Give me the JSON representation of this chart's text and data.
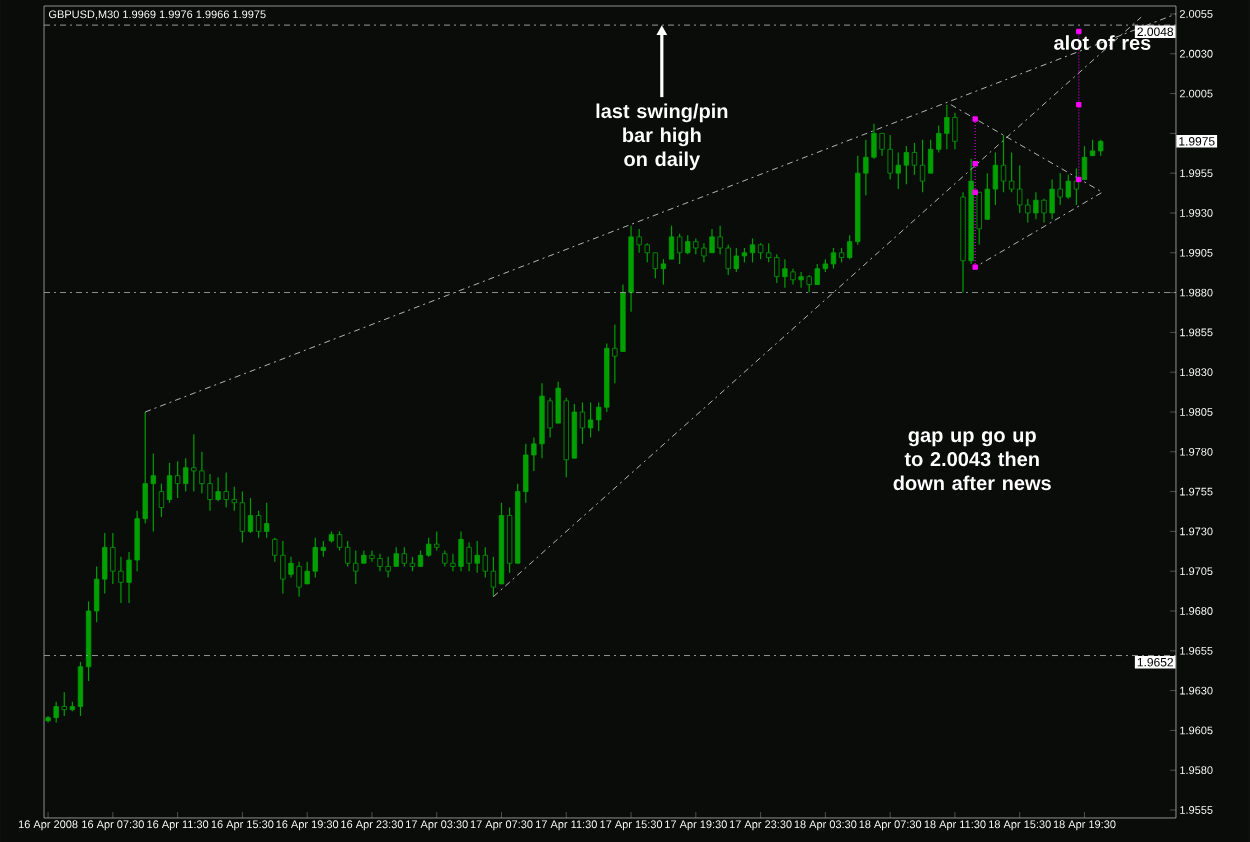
{
  "chart_data": {
    "type": "candlestick",
    "title": "GBPUSD,M30  1.9969 1.9976 1.9966 1.9975",
    "color": "#00a000",
    "x": [
      "2008-04-16T03:30",
      "2008-04-16T04:00",
      "2008-04-16T04:30",
      "2008-04-16T05:00",
      "2008-04-16T05:30",
      "2008-04-16T06:00",
      "2008-04-16T06:30",
      "2008-04-16T07:00",
      "2008-04-16T07:30",
      "2008-04-16T08:00",
      "2008-04-16T08:30",
      "2008-04-16T09:00",
      "2008-04-16T09:30",
      "2008-04-16T10:00",
      "2008-04-16T10:30",
      "2008-04-16T11:00",
      "2008-04-16T11:30",
      "2008-04-16T12:00",
      "2008-04-16T12:30",
      "2008-04-16T13:00",
      "2008-04-16T13:30",
      "2008-04-16T14:00",
      "2008-04-16T14:30",
      "2008-04-16T15:00",
      "2008-04-16T15:30",
      "2008-04-16T16:00",
      "2008-04-16T16:30",
      "2008-04-16T17:00",
      "2008-04-16T17:30",
      "2008-04-16T18:00",
      "2008-04-16T18:30",
      "2008-04-16T19:00",
      "2008-04-16T19:30",
      "2008-04-16T20:00",
      "2008-04-16T20:30",
      "2008-04-16T21:00",
      "2008-04-16T21:30",
      "2008-04-16T22:00",
      "2008-04-16T22:30",
      "2008-04-16T23:00",
      "2008-04-16T23:30",
      "2008-04-17T00:00",
      "2008-04-17T00:30",
      "2008-04-17T01:00",
      "2008-04-17T01:30",
      "2008-04-17T02:00",
      "2008-04-17T02:30",
      "2008-04-17T03:00",
      "2008-04-17T03:30",
      "2008-04-17T04:00",
      "2008-04-17T04:30",
      "2008-04-17T05:00",
      "2008-04-17T05:30",
      "2008-04-17T06:00",
      "2008-04-17T06:30",
      "2008-04-17T07:00",
      "2008-04-17T07:30",
      "2008-04-17T08:00",
      "2008-04-17T08:30",
      "2008-04-17T09:00",
      "2008-04-17T09:30",
      "2008-04-17T10:00",
      "2008-04-17T10:30",
      "2008-04-17T11:00",
      "2008-04-17T11:30",
      "2008-04-17T12:00",
      "2008-04-17T12:30",
      "2008-04-17T13:00",
      "2008-04-17T13:30",
      "2008-04-17T14:00",
      "2008-04-17T14:30",
      "2008-04-17T15:00",
      "2008-04-17T15:30",
      "2008-04-17T16:00",
      "2008-04-17T16:30",
      "2008-04-17T17:00",
      "2008-04-17T17:30",
      "2008-04-17T18:00",
      "2008-04-17T18:30",
      "2008-04-17T19:00",
      "2008-04-17T19:30",
      "2008-04-17T20:00",
      "2008-04-17T20:30",
      "2008-04-17T21:00",
      "2008-04-17T21:30",
      "2008-04-17T22:00",
      "2008-04-17T22:30",
      "2008-04-17T23:00",
      "2008-04-17T23:30",
      "2008-04-18T00:00",
      "2008-04-18T00:30",
      "2008-04-18T01:00",
      "2008-04-18T01:30",
      "2008-04-18T02:00",
      "2008-04-18T02:30",
      "2008-04-18T03:00",
      "2008-04-18T03:30",
      "2008-04-18T04:00",
      "2008-04-18T04:30",
      "2008-04-18T05:00",
      "2008-04-18T05:30",
      "2008-04-18T06:00",
      "2008-04-18T06:30",
      "2008-04-18T07:00",
      "2008-04-18T07:30",
      "2008-04-18T08:00",
      "2008-04-18T08:30",
      "2008-04-18T09:00",
      "2008-04-18T09:30",
      "2008-04-18T10:00",
      "2008-04-18T10:30",
      "2008-04-18T11:00",
      "2008-04-18T11:30",
      "2008-04-18T12:00",
      "2008-04-18T12:30",
      "2008-04-18T13:00",
      "2008-04-18T13:30",
      "2008-04-18T14:00",
      "2008-04-18T14:30",
      "2008-04-18T15:00",
      "2008-04-18T15:30",
      "2008-04-18T16:00",
      "2008-04-18T16:30",
      "2008-04-18T17:00",
      "2008-04-18T17:30",
      "2008-04-18T18:00",
      "2008-04-18T18:30",
      "2008-04-18T19:00",
      "2008-04-18T19:30",
      "2008-04-18T20:00",
      "2008-04-18T20:30"
    ],
    "ohlc": [
      [
        1.9611,
        1.9614,
        1.961,
        1.9613
      ],
      [
        1.9613,
        1.9623,
        1.961,
        1.962
      ],
      [
        1.962,
        1.9629,
        1.9614,
        1.9618
      ],
      [
        1.9618,
        1.9623,
        1.9617,
        1.962
      ],
      [
        1.962,
        1.9648,
        1.9614,
        1.9645
      ],
      [
        1.9645,
        1.9686,
        1.9636,
        1.968
      ],
      [
        1.968,
        1.9708,
        1.9673,
        1.97
      ],
      [
        1.97,
        1.9729,
        1.9691,
        1.972
      ],
      [
        1.972,
        1.9729,
        1.9697,
        1.9705
      ],
      [
        1.9705,
        1.9714,
        1.9685,
        1.9698
      ],
      [
        1.9698,
        1.9717,
        1.9685,
        1.9712
      ],
      [
        1.9712,
        1.9743,
        1.9705,
        1.9738
      ],
      [
        1.9738,
        1.9805,
        1.9735,
        1.976
      ],
      [
        1.976,
        1.9779,
        1.973,
        1.9765
      ],
      [
        1.9755,
        1.976,
        1.9739,
        1.9745
      ],
      [
        1.975,
        1.9773,
        1.9748,
        1.9765
      ],
      [
        1.9765,
        1.9774,
        1.9751,
        1.976
      ],
      [
        1.976,
        1.9776,
        1.9755,
        1.977
      ],
      [
        1.977,
        1.9791,
        1.9755,
        1.9768
      ],
      [
        1.9768,
        1.978,
        1.9754,
        1.976
      ],
      [
        1.976,
        1.9766,
        1.9743,
        1.975
      ],
      [
        1.975,
        1.9764,
        1.9749,
        1.9755
      ],
      [
        1.9755,
        1.9767,
        1.9745,
        1.975
      ],
      [
        1.975,
        1.9758,
        1.9743,
        1.9748
      ],
      [
        1.9748,
        1.9755,
        1.9723,
        1.973
      ],
      [
        1.973,
        1.9751,
        1.9729,
        1.974
      ],
      [
        1.974,
        1.9743,
        1.9726,
        1.973
      ],
      [
        1.973,
        1.9748,
        1.9726,
        1.9735
      ],
      [
        1.9725,
        1.9726,
        1.9711,
        1.9715
      ],
      [
        1.9715,
        1.9724,
        1.9691,
        1.97
      ],
      [
        1.9703,
        1.9714,
        1.9701,
        1.971
      ],
      [
        1.9708,
        1.9711,
        1.9689,
        1.9695
      ],
      [
        1.9697,
        1.9711,
        1.9697,
        1.9705
      ],
      [
        1.9705,
        1.9726,
        1.9701,
        1.972
      ],
      [
        1.9718,
        1.9724,
        1.9714,
        1.972
      ],
      [
        1.9724,
        1.973,
        1.9723,
        1.9728
      ],
      [
        1.9728,
        1.973,
        1.9718,
        1.972
      ],
      [
        1.972,
        1.9724,
        1.9708,
        1.971
      ],
      [
        1.971,
        1.9718,
        1.9697,
        1.9705
      ],
      [
        1.971,
        1.9718,
        1.971,
        1.9715
      ],
      [
        1.9715,
        1.9718,
        1.9711,
        1.9713
      ],
      [
        1.9713,
        1.9716,
        1.9705,
        1.9708
      ],
      [
        1.9708,
        1.9714,
        1.9701,
        1.9705
      ],
      [
        1.9708,
        1.972,
        1.9708,
        1.9716
      ],
      [
        1.9716,
        1.972,
        1.9708,
        1.971
      ],
      [
        1.971,
        1.9714,
        1.9705,
        1.9708
      ],
      [
        1.9708,
        1.9718,
        1.9708,
        1.9715
      ],
      [
        1.9715,
        1.9726,
        1.9714,
        1.9722
      ],
      [
        1.9722,
        1.973,
        1.9718,
        1.972
      ],
      [
        1.9716,
        1.9718,
        1.9708,
        1.971
      ],
      [
        1.971,
        1.9716,
        1.9705,
        1.9708
      ],
      [
        1.9708,
        1.973,
        1.9705,
        1.9725
      ],
      [
        1.972,
        1.9723,
        1.9705,
        1.971
      ],
      [
        1.971,
        1.9724,
        1.9704,
        1.9715
      ],
      [
        1.9715,
        1.972,
        1.9701,
        1.9705
      ],
      [
        1.9705,
        1.9714,
        1.9689,
        1.9695
      ],
      [
        1.9697,
        1.9748,
        1.9697,
        1.974
      ],
      [
        1.974,
        1.9745,
        1.9704,
        1.971
      ],
      [
        1.971,
        1.976,
        1.971,
        1.9755
      ],
      [
        1.9755,
        1.9785,
        1.9748,
        1.9778
      ],
      [
        1.9778,
        1.9789,
        1.9768,
        1.9785
      ],
      [
        1.9785,
        1.9823,
        1.9776,
        1.9815
      ],
      [
        1.9812,
        1.9814,
        1.9789,
        1.9795
      ],
      [
        1.9798,
        1.9824,
        1.9798,
        1.982
      ],
      [
        1.9812,
        1.9814,
        1.9764,
        1.9775
      ],
      [
        1.9776,
        1.981,
        1.9776,
        1.9805
      ],
      [
        1.9805,
        1.9811,
        1.9785,
        1.9795
      ],
      [
        1.9795,
        1.9811,
        1.9789,
        1.98
      ],
      [
        1.98,
        1.9811,
        1.9793,
        1.9808
      ],
      [
        1.9808,
        1.9848,
        1.9805,
        1.9845
      ],
      [
        1.9845,
        1.986,
        1.9823,
        1.984
      ],
      [
        1.9843,
        1.9885,
        1.9843,
        1.988
      ],
      [
        1.988,
        1.9922,
        1.9868,
        1.9915
      ],
      [
        1.9915,
        1.992,
        1.9905,
        1.991
      ],
      [
        1.991,
        1.9911,
        1.9899,
        1.9905
      ],
      [
        1.9905,
        1.9905,
        1.9889,
        1.9895
      ],
      [
        1.9895,
        1.9901,
        1.9885,
        1.9898
      ],
      [
        1.9901,
        1.9922,
        1.9901,
        1.9915
      ],
      [
        1.9915,
        1.9917,
        1.9898,
        1.9905
      ],
      [
        1.9905,
        1.9916,
        1.9904,
        1.9912
      ],
      [
        1.9912,
        1.9914,
        1.9904,
        1.9908
      ],
      [
        1.9908,
        1.9911,
        1.9899,
        1.9903
      ],
      [
        1.9905,
        1.992,
        1.9905,
        1.9915
      ],
      [
        1.9915,
        1.9922,
        1.9904,
        1.9908
      ],
      [
        1.9908,
        1.991,
        1.9891,
        1.9895
      ],
      [
        1.9895,
        1.9908,
        1.9893,
        1.9903
      ],
      [
        1.9903,
        1.9908,
        1.9899,
        1.9905
      ],
      [
        1.9905,
        1.9914,
        1.9899,
        1.991
      ],
      [
        1.991,
        1.9911,
        1.9901,
        1.9905
      ],
      [
        1.9905,
        1.9911,
        1.9899,
        1.9902
      ],
      [
        1.9902,
        1.9904,
        1.9886,
        1.989
      ],
      [
        1.989,
        1.9901,
        1.9883,
        1.9895
      ],
      [
        1.9893,
        1.9895,
        1.9885,
        1.9888
      ],
      [
        1.9888,
        1.9893,
        1.9883,
        1.989
      ],
      [
        1.989,
        1.9891,
        1.988,
        1.9885
      ],
      [
        1.9885,
        1.9898,
        1.9885,
        1.9895
      ],
      [
        1.9895,
        1.9901,
        1.9893,
        1.9898
      ],
      [
        1.9898,
        1.9908,
        1.9895,
        1.9905
      ],
      [
        1.9905,
        1.9908,
        1.9899,
        1.9902
      ],
      [
        1.9902,
        1.9916,
        1.9901,
        1.9912
      ],
      [
        1.9912,
        1.9966,
        1.991,
        1.9955
      ],
      [
        1.9955,
        1.9976,
        1.9941,
        1.9965
      ],
      [
        1.9965,
        1.9986,
        1.9964,
        1.998
      ],
      [
        1.998,
        1.998,
        1.9966,
        1.997
      ],
      [
        1.997,
        1.9979,
        1.9951,
        1.9955
      ],
      [
        1.9955,
        1.9968,
        1.9945,
        1.996
      ],
      [
        1.996,
        1.9972,
        1.9948,
        1.9968
      ],
      [
        1.9968,
        1.9974,
        1.9954,
        1.996
      ],
      [
        1.996,
        1.9976,
        1.9943,
        1.995
      ],
      [
        1.9955,
        1.9976,
        1.9955,
        1.997
      ],
      [
        1.997,
        1.9985,
        1.9968,
        1.998
      ],
      [
        1.998,
        1.9998,
        1.997,
        1.999
      ],
      [
        1.999,
        1.9993,
        1.997,
        1.9975
      ],
      [
        1.994,
        1.9943,
        1.988,
        1.99
      ],
      [
        1.99,
        1.9964,
        1.9898,
        1.995
      ],
      [
        1.9943,
        1.9943,
        1.991,
        1.992
      ],
      [
        1.9926,
        1.9955,
        1.9926,
        1.9945
      ],
      [
        1.9945,
        1.9968,
        1.9935,
        1.996
      ],
      [
        1.996,
        1.9979,
        1.9943,
        1.995
      ],
      [
        1.995,
        1.9968,
        1.9943,
        1.9945
      ],
      [
        1.9945,
        1.996,
        1.993,
        1.9935
      ],
      [
        1.9935,
        1.9939,
        1.9924,
        1.993
      ],
      [
        1.993,
        1.9943,
        1.9926,
        1.9938
      ],
      [
        1.9938,
        1.9939,
        1.9924,
        1.993
      ],
      [
        1.993,
        1.9951,
        1.9926,
        1.9945
      ],
      [
        1.9945,
        1.9955,
        1.9935,
        1.994
      ],
      [
        1.994,
        1.9954,
        1.9939,
        1.995
      ],
      [
        1.995,
        1.9958,
        1.9935,
        1.9945
      ],
      [
        1.9951,
        1.9972,
        1.9951,
        1.9965
      ],
      [
        1.9966,
        1.9976,
        1.9966,
        1.9969
      ],
      [
        1.9969,
        1.9976,
        1.9966,
        1.9975
      ]
    ],
    "series": [
      {
        "type": "line",
        "color": "#b4b4b4",
        "line_style": "dashed",
        "x": [
          "2008-04-16T09:30",
          "2008-04-19T01:09"
        ],
        "values": [
          1.9805,
          2.0055
        ]
      },
      {
        "type": "line",
        "color": "#b4b4b4",
        "line_style": "dashed",
        "x": [
          "2008-04-17T07:00",
          "2008-04-18T23:00"
        ],
        "values": [
          1.9689,
          2.0053
        ]
      },
      {
        "type": "line",
        "color": "#b4b4b4",
        "line_style": "dashed",
        "x": [
          "2008-04-18T11:15",
          "2008-04-18T20:36",
          "2008-04-18T12:45"
        ],
        "values": [
          1.9998,
          1.9943,
          1.9896
        ]
      },
      {
        "type": "line",
        "color": "#ff00ff",
        "line_style": "dotted",
        "marker": "square",
        "x": [
          "2008-04-18T12:45",
          "2008-04-18T12:45",
          "2008-04-18T12:45",
          "2008-04-18T12:45"
        ],
        "values": [
          1.9989,
          1.9961,
          1.9943,
          1.9896
        ]
      },
      {
        "type": "line",
        "color": "#ff00ff",
        "line_style": "dotted",
        "marker": "square",
        "x": [
          "2008-04-18T19:09",
          "2008-04-18T19:09",
          "2008-04-18T19:09"
        ],
        "values": [
          2.0044,
          1.9998,
          1.9951
        ]
      }
    ],
    "xlim": [
      "2008-04-16T03:15",
      "2008-04-19T01:09"
    ],
    "xticks": [
      {
        "value": "2008-04-16T03:30",
        "label": "16 Apr 2008"
      },
      {
        "value": "2008-04-16T07:30",
        "label": "16 Apr 07:30"
      },
      {
        "value": "2008-04-16T11:30",
        "label": "16 Apr 11:30"
      },
      {
        "value": "2008-04-16T15:30",
        "label": "16 Apr 15:30"
      },
      {
        "value": "2008-04-16T19:30",
        "label": "16 Apr 19:30"
      },
      {
        "value": "2008-04-16T23:30",
        "label": "16 Apr 23:30"
      },
      {
        "value": "2008-04-17T03:30",
        "label": "17 Apr 03:30"
      },
      {
        "value": "2008-04-17T07:30",
        "label": "17 Apr 07:30"
      },
      {
        "value": "2008-04-17T11:30",
        "label": "17 Apr 11:30"
      },
      {
        "value": "2008-04-17T15:30",
        "label": "17 Apr 15:30"
      },
      {
        "value": "2008-04-17T19:30",
        "label": "17 Apr 19:30"
      },
      {
        "value": "2008-04-17T23:30",
        "label": "17 Apr 23:30"
      },
      {
        "value": "2008-04-18T03:30",
        "label": "18 Apr 03:30"
      },
      {
        "value": "2008-04-18T07:30",
        "label": "18 Apr 07:30"
      },
      {
        "value": "2008-04-18T11:30",
        "label": "18 Apr 11:30"
      },
      {
        "value": "2008-04-18T15:30",
        "label": "18 Apr 15:30"
      },
      {
        "value": "2008-04-18T19:30",
        "label": "18 Apr 19:30"
      }
    ],
    "ylim": [
      1.955,
      2.006
    ],
    "yticks": [
      1.9555,
      {
        "value": 1.958,
        "label": "1.9580"
      },
      1.9605,
      {
        "value": 1.963,
        "label": "1.9630"
      },
      1.9655,
      {
        "value": 1.968,
        "label": "1.9680"
      },
      1.9705,
      {
        "value": 1.973,
        "label": "1.9730"
      },
      1.9755,
      {
        "value": 1.978,
        "label": "1.9780"
      },
      1.9805,
      {
        "value": 1.983,
        "label": "1.9830"
      },
      1.9855,
      {
        "value": 1.988,
        "label": "1.9880"
      },
      1.9905,
      {
        "value": 1.993,
        "label": "1.9930"
      },
      1.9955,
      {
        "value": 1.998,
        "label": null
      },
      2.0005,
      {
        "value": 2.003,
        "label": "2.0030"
      },
      2.0055
    ],
    "ref_lines": [
      {
        "axis": "y",
        "value": 2.0048,
        "label": "2.0048",
        "color": "#9a9a9a",
        "line_style": "dashed"
      },
      {
        "axis": "y",
        "value": 1.988,
        "color": "#9a9a9a",
        "line_style": "dashed"
      },
      {
        "axis": "y",
        "value": 1.9652,
        "label": "1.9652",
        "color": "#9a9a9a",
        "line_style": "dashed"
      }
    ],
    "annotations": [
      {
        "text": "last swing/pin bar high on daily",
        "x": "2008-04-17T17:24",
        "y": 2.0048
      },
      "gap up go up to 2.0043 then down after news",
      "alot of res",
      {
        "text": "1.9975",
        "y": 1.9975
      }
    ]
  }
}
